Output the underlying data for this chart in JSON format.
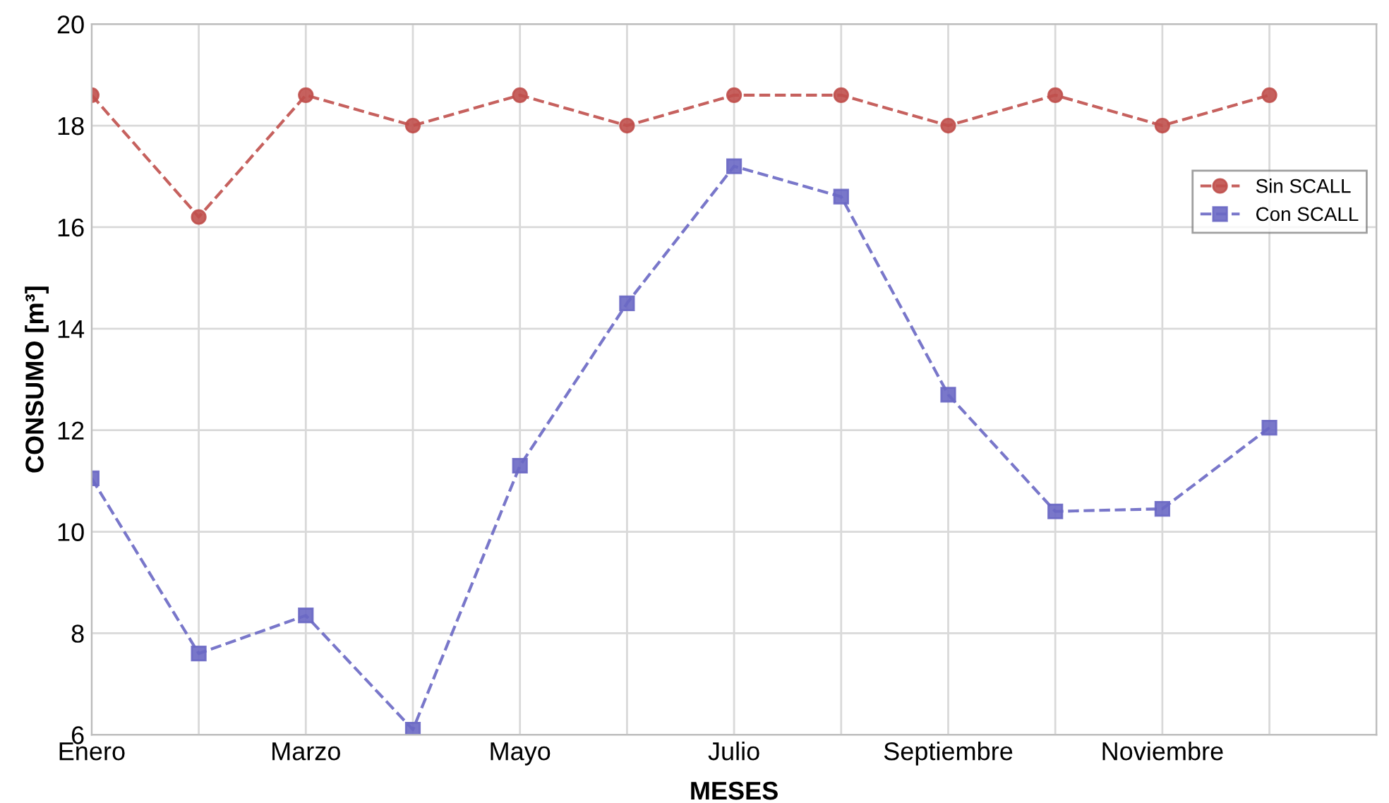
{
  "chart_data": {
    "type": "line",
    "xlabel": "MESES",
    "ylabel": "CONSUMO [m³]",
    "categories": [
      "Enero",
      null,
      "Marzo",
      null,
      "Mayo",
      null,
      "Julio",
      null,
      "Septiembre",
      null,
      "Noviembre",
      null,
      null
    ],
    "ylim": [
      6,
      20
    ],
    "yticks": [
      6,
      8,
      10,
      12,
      14,
      16,
      18,
      20
    ],
    "series": [
      {
        "name": "Sin SCALL",
        "color": "#c0504d",
        "marker": "circle",
        "values": [
          18.6,
          16.2,
          18.6,
          18.0,
          18.6,
          18.0,
          18.6,
          18.6,
          18.0,
          18.6,
          18.0,
          18.6,
          null
        ]
      },
      {
        "name": "Con SCALL",
        "color": "#6a68c4",
        "marker": "square",
        "values": [
          11.05,
          7.6,
          8.35,
          6.1,
          11.3,
          14.5,
          17.2,
          16.6,
          12.7,
          10.4,
          10.45,
          12.05,
          null
        ]
      }
    ],
    "line_style": "dashed",
    "grid": true,
    "legend": "right"
  }
}
